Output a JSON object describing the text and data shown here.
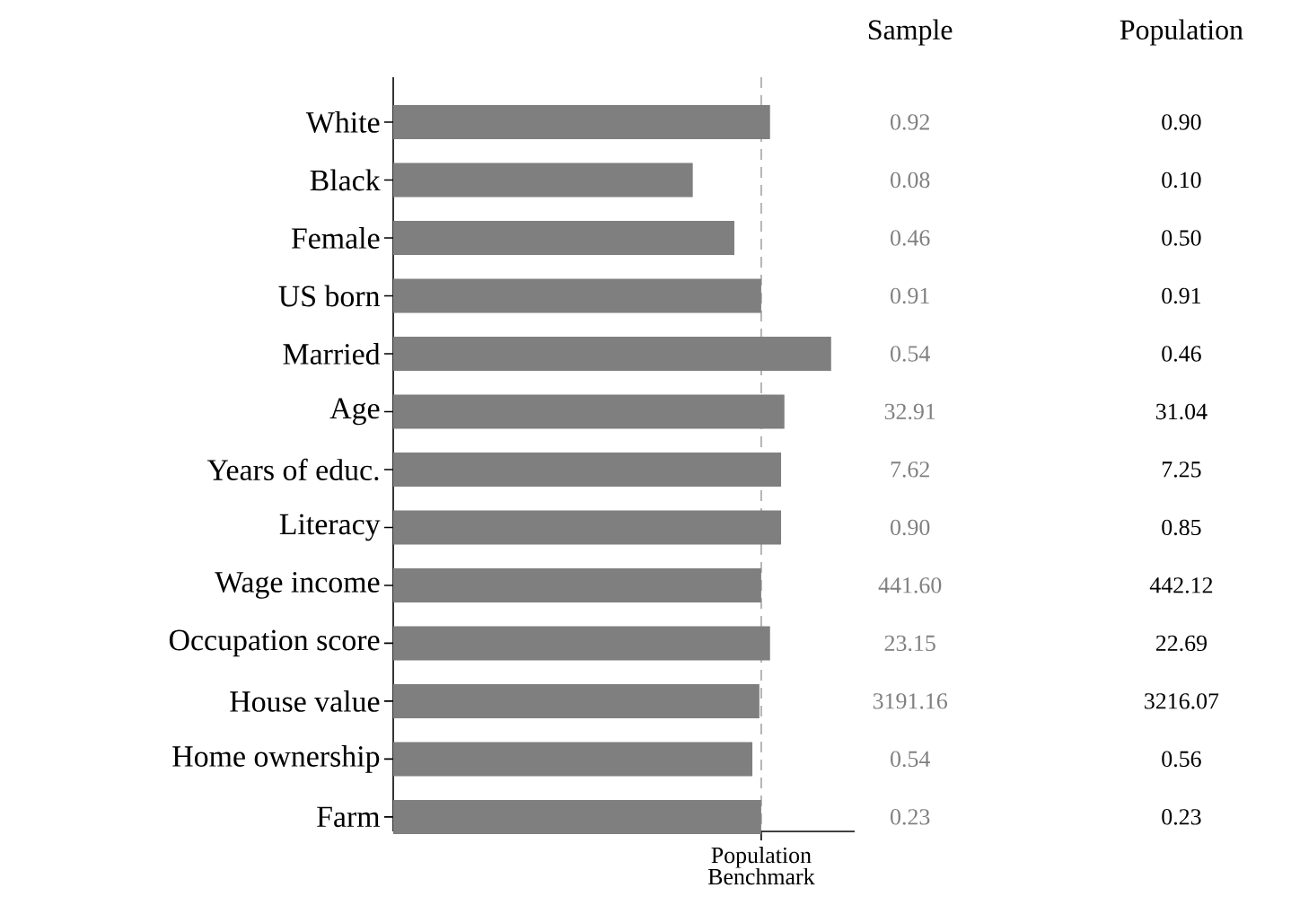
{
  "chart_data": {
    "type": "bar",
    "orientation": "horizontal",
    "categories": [
      "White",
      "Black",
      "Female",
      "US born",
      "Married",
      "Age",
      "Years of educ.",
      "Literacy",
      "Wage income",
      "Occupation score",
      "House value",
      "Home ownership",
      "Farm"
    ],
    "series": [
      {
        "color": "#7f7f7f",
        "values": [
          1.024,
          0.814,
          0.927,
          1.0,
          1.19,
          1.063,
          1.054,
          1.054,
          1.0,
          1.024,
          0.995,
          0.976,
          1.0
        ]
      }
    ],
    "xlim": [
      0,
      1.254
    ],
    "xticks": [
      {
        "value": 1,
        "label": "Population Benchmark"
      }
    ],
    "ref_lines": [
      {
        "axis": "x",
        "value": 1,
        "color": "#b4b4b4",
        "line_style": "dashed"
      }
    ],
    "annotations": [
      "Sample",
      "Population",
      "0.92",
      "0.08",
      "0.46",
      "0.91",
      "0.54",
      "32.91",
      "7.62",
      "0.90",
      "441.60",
      "23.15",
      "3191.16",
      "0.54",
      "0.23",
      "0.90",
      "0.10",
      "0.50",
      "0.91",
      "0.46",
      "31.04",
      "7.25",
      "0.85",
      "442.12",
      "22.69",
      "3216.07",
      "0.56",
      "0.23"
    ]
  }
}
